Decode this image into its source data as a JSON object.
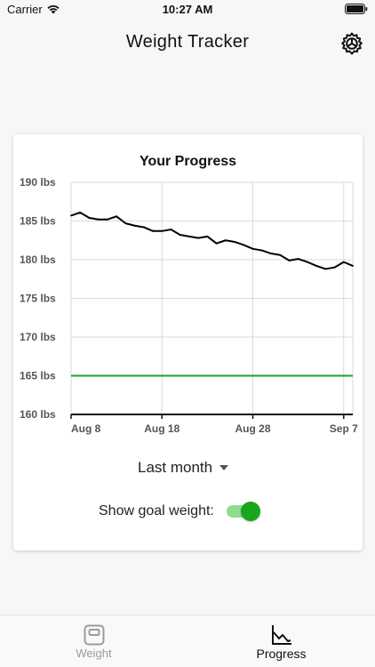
{
  "status_bar": {
    "carrier": "Carrier",
    "time": "10:27 AM"
  },
  "nav": {
    "title": "Weight Tracker",
    "settings_icon": "gear-icon"
  },
  "card": {
    "title": "Your Progress",
    "range": {
      "selected": "Last month",
      "icon": "dropdown-caret-icon"
    },
    "goal_toggle": {
      "label": "Show goal weight:",
      "on": true
    }
  },
  "chart_data": {
    "type": "line",
    "title": "Your Progress",
    "xlabel": "",
    "ylabel": "",
    "x_ticks": [
      "Aug 8",
      "Aug 18",
      "Aug 28",
      "Sep 7"
    ],
    "y_ticks": [
      "160 lbs",
      "165 lbs",
      "170 lbs",
      "175 lbs",
      "180 lbs",
      "185 lbs",
      "190 lbs"
    ],
    "ylim": [
      160,
      190
    ],
    "xlim": [
      "2023-08-08",
      "2023-09-08"
    ],
    "grid": true,
    "colors": {
      "weight": "#000000",
      "goal": "#1aa61a"
    },
    "series": [
      {
        "x": [
          "2023-08-08",
          "2023-08-09",
          "2023-08-10",
          "2023-08-11",
          "2023-08-12",
          "2023-08-13",
          "2023-08-14",
          "2023-08-15",
          "2023-08-16",
          "2023-08-17",
          "2023-08-18",
          "2023-08-19",
          "2023-08-20",
          "2023-08-21",
          "2023-08-22",
          "2023-08-23",
          "2023-08-24",
          "2023-08-25",
          "2023-08-26",
          "2023-08-27",
          "2023-08-28",
          "2023-08-29",
          "2023-08-30",
          "2023-08-31",
          "2023-09-01",
          "2023-09-02",
          "2023-09-03",
          "2023-09-04",
          "2023-09-05",
          "2023-09-06",
          "2023-09-07",
          "2023-09-08"
        ],
        "values": [
          185.7,
          186.1,
          185.4,
          185.2,
          185.2,
          185.6,
          184.7,
          184.4,
          184.2,
          183.7,
          183.7,
          183.9,
          183.2,
          183.0,
          182.8,
          183.0,
          182.1,
          182.5,
          182.3,
          181.9,
          181.4,
          181.2,
          180.8,
          180.6,
          179.9,
          180.1,
          179.7,
          179.2,
          178.8,
          179.0,
          179.7,
          179.2
        ]
      },
      {
        "x": [
          "2023-08-08",
          "2023-09-08"
        ],
        "values": [
          165,
          165
        ]
      }
    ]
  },
  "tabs": [
    {
      "label": "Weight",
      "icon": "scale-icon",
      "active": false
    },
    {
      "label": "Progress",
      "icon": "line-chart-icon",
      "active": true
    }
  ]
}
